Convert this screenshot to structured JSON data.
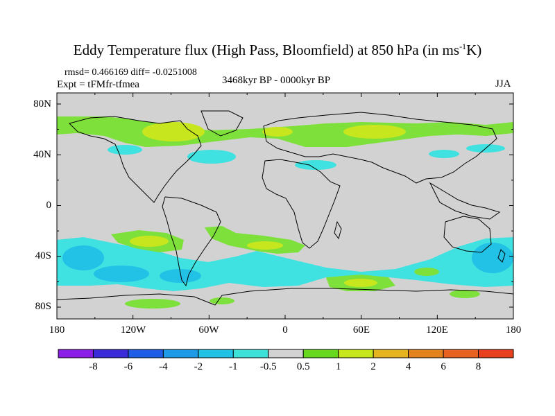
{
  "title_main": "Eddy Temperature flux (High Pass, Bloomfield) at 850 hPa (in ms",
  "title_sup": "-1",
  "title_end": "K)",
  "stats": "rmsd= 0.466169 diff= -0.0251008",
  "expt": "Expt = tFMfr-tfmea",
  "period": "3468kyr BP - 0000kyr BP",
  "season": "JJA",
  "lat_labels": [
    "80N",
    "40N",
    "0",
    "40S",
    "80S"
  ],
  "lon_labels": [
    "180",
    "120W",
    "60W",
    "0",
    "60E",
    "120E",
    "180"
  ],
  "colorbar": {
    "labels": [
      "-8",
      "-6",
      "-4",
      "-2",
      "-1",
      "-0.5",
      "0.5",
      "1",
      "2",
      "4",
      "6",
      "8"
    ],
    "colors": [
      "#8a1ee6",
      "#3a2ad8",
      "#1e5ee6",
      "#1e9ae6",
      "#22c2e6",
      "#3ee2d8",
      "#d2d2d2",
      "#66d81e",
      "#c8e61e",
      "#e6b41e",
      "#e6821e",
      "#e6621e",
      "#e6401e"
    ]
  },
  "colors": {
    "neutral": "#d2d2d2",
    "green": "#7ee03a",
    "yellow": "#c8e61e",
    "cyan": "#3fe2e0",
    "teal": "#22c2e6",
    "blue": "#1e9ae6"
  }
}
